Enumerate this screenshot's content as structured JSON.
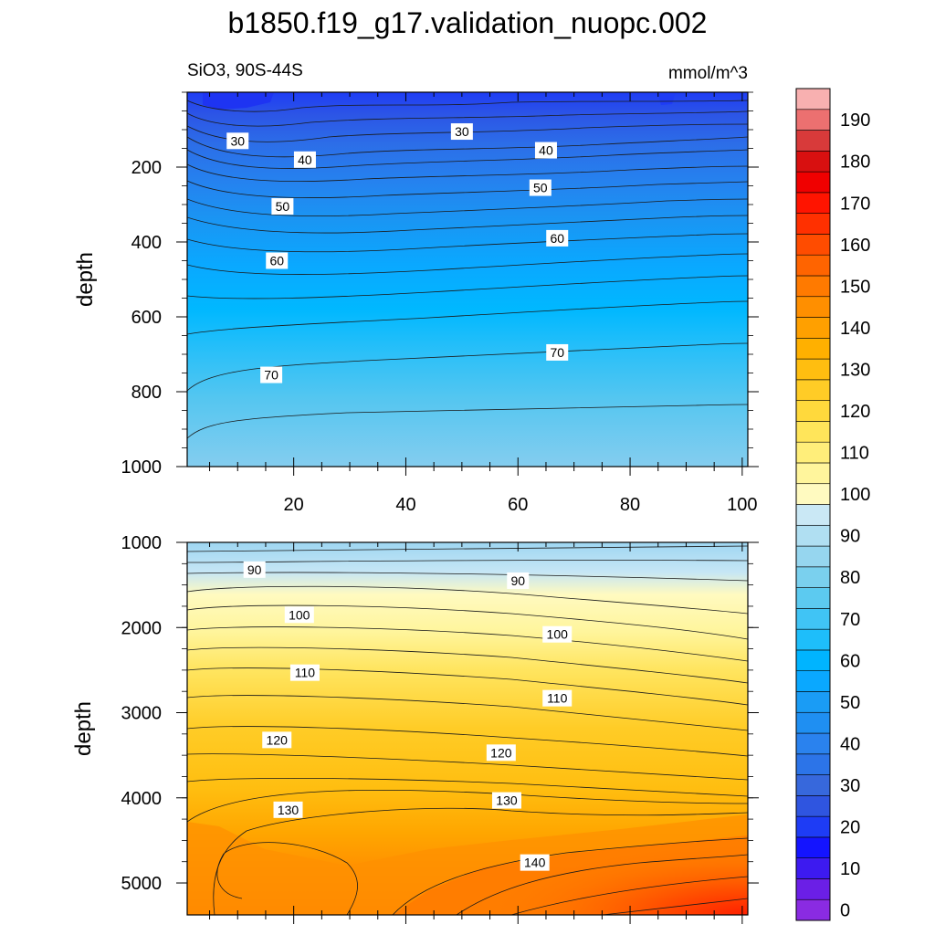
{
  "title": "b1850.f19_g17.validation_nuopc.002",
  "chart_data": {
    "type": "contour",
    "title": "b1850.f19_g17.validation_nuopc.002",
    "left_subtitle": "SiO3, 90S-44S",
    "right_subtitle": "mmol/m^3",
    "ylabel": "depth",
    "x_ticks": [
      "20",
      "40",
      "60",
      "80",
      "100"
    ],
    "x_range": [
      1,
      101
    ],
    "colorbar": {
      "levels": [
        0,
        5,
        10,
        15,
        20,
        25,
        30,
        35,
        40,
        45,
        50,
        55,
        60,
        65,
        70,
        75,
        80,
        85,
        90,
        95,
        100,
        105,
        110,
        115,
        120,
        125,
        130,
        135,
        140,
        145,
        150,
        155,
        160,
        165,
        170,
        175,
        180,
        185,
        190,
        195
      ],
      "tick_labels": [
        "0",
        "10",
        "20",
        "30",
        "40",
        "50",
        "60",
        "70",
        "80",
        "90",
        "100",
        "110",
        "120",
        "130",
        "140",
        "150",
        "160",
        "170",
        "180",
        "190"
      ],
      "colors": [
        "#8a2be2",
        "#6b1fe6",
        "#3d1af0",
        "#1414ff",
        "#1e3cf5",
        "#2f55e0",
        "#3768dc",
        "#2c74e8",
        "#2a82ee",
        "#1f8ff2",
        "#1a9cf5",
        "#0aa8ff",
        "#00b4ff",
        "#1ebefa",
        "#40c4f5",
        "#5ccaf0",
        "#7ad0ee",
        "#96d6ef",
        "#b0dff2",
        "#cae8f5",
        "#fffac0",
        "#fff59c",
        "#ffee7a",
        "#ffe55a",
        "#ffd93c",
        "#ffcc26",
        "#ffbe10",
        "#ffb000",
        "#ffa000",
        "#ff8f00",
        "#ff7a00",
        "#ff6400",
        "#ff4c00",
        "#ff3000",
        "#ff1400",
        "#f00000",
        "#d81010",
        "#d83a3a",
        "#ec7070",
        "#f8b0b0"
      ]
    },
    "upper_panel": {
      "y_ticks": [
        "200",
        "400",
        "600",
        "800",
        "1000"
      ],
      "y_range": [
        0,
        1000
      ],
      "contour_labels": [
        {
          "text": "30",
          "x": 10,
          "y": 130
        },
        {
          "text": "30",
          "x": 50,
          "y": 105
        },
        {
          "text": "40",
          "x": 22,
          "y": 180
        },
        {
          "text": "40",
          "x": 65,
          "y": 155
        },
        {
          "text": "50",
          "x": 18,
          "y": 305
        },
        {
          "text": "50",
          "x": 64,
          "y": 255
        },
        {
          "text": "60",
          "x": 17,
          "y": 450
        },
        {
          "text": "60",
          "x": 67,
          "y": 390
        },
        {
          "text": "70",
          "x": 16,
          "y": 755
        },
        {
          "text": "70",
          "x": 67,
          "y": 695
        }
      ]
    },
    "lower_panel": {
      "y_ticks": [
        "1000",
        "2000",
        "3000",
        "4000",
        "5000"
      ],
      "y_range": [
        1000,
        5375
      ],
      "contour_labels": [
        {
          "text": "90",
          "x": 13,
          "y": 1320
        },
        {
          "text": "90",
          "x": 60,
          "y": 1450
        },
        {
          "text": "100",
          "x": 21,
          "y": 1850
        },
        {
          "text": "100",
          "x": 67,
          "y": 2080
        },
        {
          "text": "110",
          "x": 22,
          "y": 2530
        },
        {
          "text": "110",
          "x": 67,
          "y": 2830
        },
        {
          "text": "120",
          "x": 17,
          "y": 3320
        },
        {
          "text": "120",
          "x": 57,
          "y": 3470
        },
        {
          "text": "130",
          "x": 19,
          "y": 4140
        },
        {
          "text": "130",
          "x": 58,
          "y": 4030
        },
        {
          "text": "140",
          "x": 63,
          "y": 4760
        }
      ]
    }
  }
}
